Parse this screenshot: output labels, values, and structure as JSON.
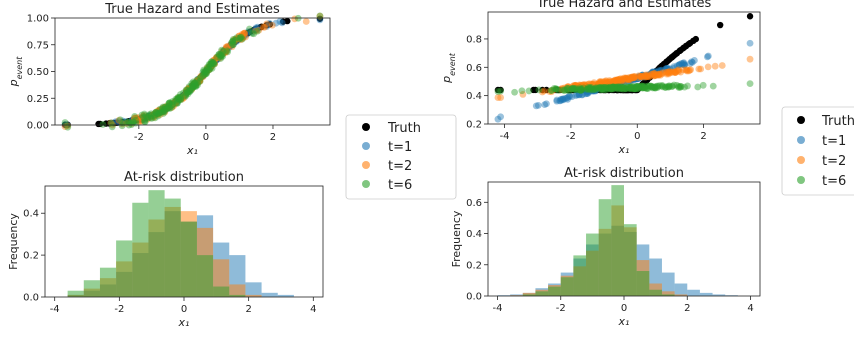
{
  "colors": {
    "truth": "#000000",
    "t1": "#1f77b4",
    "t2": "#ff7f0e",
    "t6": "#2ca02c"
  },
  "chart_data": [
    {
      "type": "scatter",
      "title": "True Hazard and Estimates",
      "xlabel": "x₁",
      "ylabel": "p_event",
      "xlim": [
        -4.5,
        3.7
      ],
      "ylim": [
        0.0,
        1.0
      ],
      "xticks": [
        "-2",
        "0",
        "2"
      ],
      "xtick_values": [
        -2,
        0,
        2
      ],
      "yticks": [
        "0.00",
        "0.25",
        "0.50",
        "0.75",
        "1.00"
      ],
      "ytick_values": [
        0,
        0.25,
        0.5,
        0.75,
        1.0
      ],
      "curve": "sigmoid",
      "x_range": [
        -4.2,
        3.4
      ],
      "series": [
        {
          "name": "Truth",
          "color_key": "truth",
          "kind": "sigmoid",
          "center": 0,
          "scale": 1.0
        },
        {
          "name": "t=1",
          "color_key": "t1",
          "kind": "sigmoid",
          "center": 0,
          "scale": 1.0
        },
        {
          "name": "t=2",
          "color_key": "t2",
          "kind": "sigmoid",
          "center": 0,
          "scale": 1.0
        },
        {
          "name": "t=6",
          "color_key": "t6",
          "kind": "sigmoid",
          "center": 0,
          "scale": 1.0
        }
      ],
      "legend": [
        "Truth",
        "t=1",
        "t=2",
        "t=6"
      ],
      "legend_placement": "right"
    },
    {
      "type": "bar",
      "title": "At-risk distribution",
      "xlabel": "x₁",
      "ylabel": "Frequency",
      "xlim": [
        -4.3,
        4.3
      ],
      "ylim": [
        0.0,
        0.53
      ],
      "xticks": [
        "-4",
        "-2",
        "0",
        "2",
        "4"
      ],
      "xtick_values": [
        -4,
        -2,
        0,
        2,
        4
      ],
      "yticks": [
        "0.0",
        "0.2",
        "0.4"
      ],
      "ytick_values": [
        0,
        0.2,
        0.4
      ],
      "bin_edges": [
        -3.6,
        -3.1,
        -2.6,
        -2.1,
        -1.6,
        -1.1,
        -0.6,
        -0.1,
        0.4,
        0.9,
        1.4,
        1.9,
        2.4,
        2.9,
        3.4
      ],
      "series": [
        {
          "name": "t=1",
          "color_key": "t1",
          "values": [
            0.01,
            0.03,
            0.06,
            0.12,
            0.21,
            0.31,
            0.41,
            0.36,
            0.39,
            0.26,
            0.2,
            0.07,
            0.02,
            0.01
          ]
        },
        {
          "name": "t=2",
          "color_key": "t2",
          "values": [
            0.01,
            0.04,
            0.09,
            0.17,
            0.26,
            0.37,
            0.43,
            0.41,
            0.33,
            0.18,
            0.06,
            0.01,
            0,
            0
          ]
        },
        {
          "name": "t=6",
          "color_key": "t6",
          "values": [
            0.03,
            0.08,
            0.14,
            0.27,
            0.45,
            0.51,
            0.47,
            0.36,
            0.2,
            0.05,
            0.01,
            0,
            0,
            0
          ]
        }
      ]
    },
    {
      "type": "scatter",
      "title": "True Hazard and Estimates",
      "xlabel": "x₁",
      "ylabel": "p_event",
      "xlim": [
        -4.5,
        3.7
      ],
      "ylim": [
        0.2,
        0.99
      ],
      "xticks": [
        "-4",
        "-2",
        "0",
        "2"
      ],
      "xtick_values": [
        -4,
        -2,
        0,
        2
      ],
      "yticks": [
        "0.2",
        "0.4",
        "0.6",
        "0.8"
      ],
      "ytick_values": [
        0.2,
        0.4,
        0.6,
        0.8
      ],
      "x_range": [
        -4.2,
        3.4
      ],
      "series": [
        {
          "name": "Truth",
          "color_key": "truth",
          "kind": "hinge",
          "floor": 0.44,
          "knee": 0.0,
          "end": 0.96
        },
        {
          "name": "t=1",
          "color_key": "t1",
          "kind": "linear",
          "y_start": 0.24,
          "y_end": 0.76
        },
        {
          "name": "t=2",
          "color_key": "t2",
          "kind": "linear",
          "y_start": 0.38,
          "y_end": 0.65
        },
        {
          "name": "t=6",
          "color_key": "t6",
          "kind": "linear",
          "y_start": 0.43,
          "y_end": 0.48
        }
      ],
      "legend": [
        "Truth",
        "t=1",
        "t=2",
        "t=6"
      ],
      "legend_placement": "right"
    },
    {
      "type": "bar",
      "title": "At-risk distribution",
      "xlabel": "x₁",
      "ylabel": "Frequency",
      "xlim": [
        -4.3,
        4.3
      ],
      "ylim": [
        0.0,
        0.73
      ],
      "xticks": [
        "-4",
        "-2",
        "0",
        "2",
        "4"
      ],
      "xtick_values": [
        -4,
        -2,
        0,
        2,
        4
      ],
      "yticks": [
        "0.0",
        "0.2",
        "0.4",
        "0.6"
      ],
      "ytick_values": [
        0,
        0.2,
        0.4,
        0.6
      ],
      "bin_edges": [
        -4.0,
        -3.6,
        -3.2,
        -2.8,
        -2.4,
        -2.0,
        -1.6,
        -1.2,
        -0.8,
        -0.4,
        0.0,
        0.4,
        0.8,
        1.2,
        1.6,
        2.0,
        2.4,
        2.8,
        3.2,
        3.6
      ],
      "series": [
        {
          "name": "t=1",
          "color_key": "t1",
          "values": [
            0.005,
            0.01,
            0.02,
            0.05,
            0.08,
            0.15,
            0.24,
            0.33,
            0.4,
            0.45,
            0.41,
            0.33,
            0.24,
            0.15,
            0.08,
            0.04,
            0.02,
            0.01,
            0.005
          ]
        },
        {
          "name": "t=2",
          "color_key": "t2",
          "values": [
            0,
            0.005,
            0.02,
            0.04,
            0.07,
            0.13,
            0.19,
            0.29,
            0.43,
            0.58,
            0.44,
            0.23,
            0.08,
            0.03,
            0.01,
            0,
            0,
            0,
            0
          ]
        },
        {
          "name": "t=6",
          "color_key": "t6",
          "values": [
            0,
            0,
            0.01,
            0.03,
            0.06,
            0.12,
            0.26,
            0.4,
            0.62,
            0.71,
            0.46,
            0.16,
            0.04,
            0.01,
            0,
            0,
            0,
            0,
            0
          ]
        }
      ]
    }
  ]
}
